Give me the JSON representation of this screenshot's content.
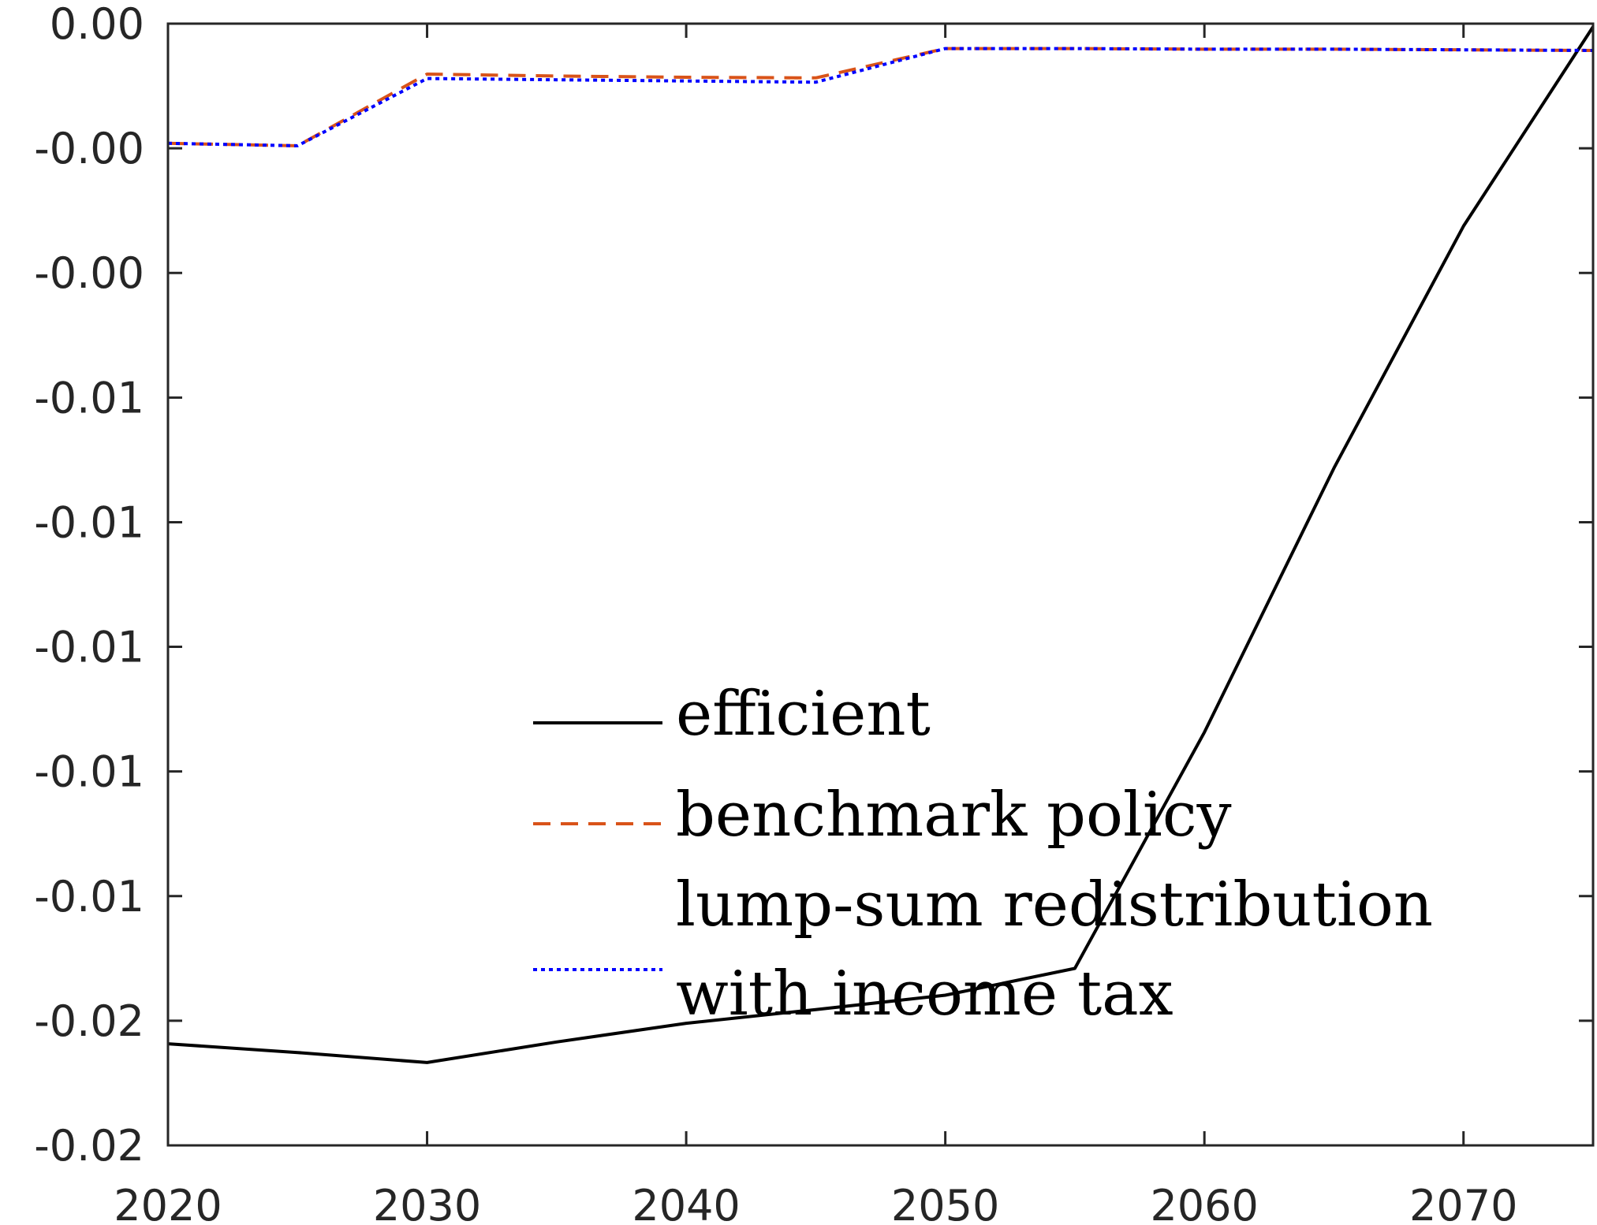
{
  "chart_data": {
    "type": "line",
    "title": "",
    "xlabel": "",
    "ylabel": "",
    "xlim": [
      2020,
      2075
    ],
    "ylim": [
      -0.018,
      0.0
    ],
    "x_ticks": [
      2020,
      2030,
      2040,
      2050,
      2060,
      2070
    ],
    "x_tick_labels": [
      "2020",
      "2030",
      "2040",
      "2050",
      "2060",
      "2070"
    ],
    "y_ticks": [
      0.0,
      -0.002,
      -0.004,
      -0.006,
      -0.008,
      -0.01,
      -0.012,
      -0.014,
      -0.016,
      -0.018
    ],
    "y_tick_labels": [
      "0.00",
      "-0.00",
      "-0.00",
      "-0.01",
      "-0.01",
      "-0.01",
      "-0.01",
      "-0.01",
      "-0.02",
      "-0.02"
    ],
    "grid": false,
    "legend_position": "bottom-right",
    "series": [
      {
        "name": "efficient",
        "color": "#000000",
        "style": "solid",
        "x": [
          2020,
          2025,
          2030,
          2035,
          2040,
          2045,
          2050,
          2055,
          2060,
          2065,
          2070,
          2075
        ],
        "y": [
          -0.01637,
          -0.01651,
          -0.01667,
          -0.01634,
          -0.01604,
          -0.01582,
          -0.01559,
          -0.01516,
          -0.01137,
          -0.00713,
          -0.00325,
          -5e-05
        ]
      },
      {
        "name": "benchmark policy",
        "color": "#D95319",
        "style": "dashed",
        "x": [
          2020,
          2025,
          2030,
          2035,
          2040,
          2045,
          2050,
          2055,
          2060,
          2065,
          2070,
          2075
        ],
        "y": [
          -0.00192,
          -0.00196,
          -0.00081,
          -0.00084,
          -0.00086,
          -0.00087,
          -0.0004,
          -0.0004,
          -0.00041,
          -0.00041,
          -0.00042,
          -0.00043
        ]
      },
      {
        "name": "lump-sum redistribution with income tax",
        "color": "#0000FF",
        "style": "dotted",
        "x": [
          2020,
          2025,
          2030,
          2035,
          2040,
          2045,
          2050,
          2055,
          2060,
          2065,
          2070,
          2075
        ],
        "y": [
          -0.00192,
          -0.00196,
          -0.00088,
          -0.0009,
          -0.00092,
          -0.00094,
          -0.0004,
          -0.0004,
          -0.00041,
          -0.00041,
          -0.00042,
          -0.00043
        ]
      }
    ],
    "legend_entries": [
      {
        "lines": [
          "efficient"
        ]
      },
      {
        "lines": [
          "benchmark policy"
        ]
      },
      {
        "lines": [
          "lump-sum redistribution",
          "with income tax"
        ]
      }
    ]
  }
}
